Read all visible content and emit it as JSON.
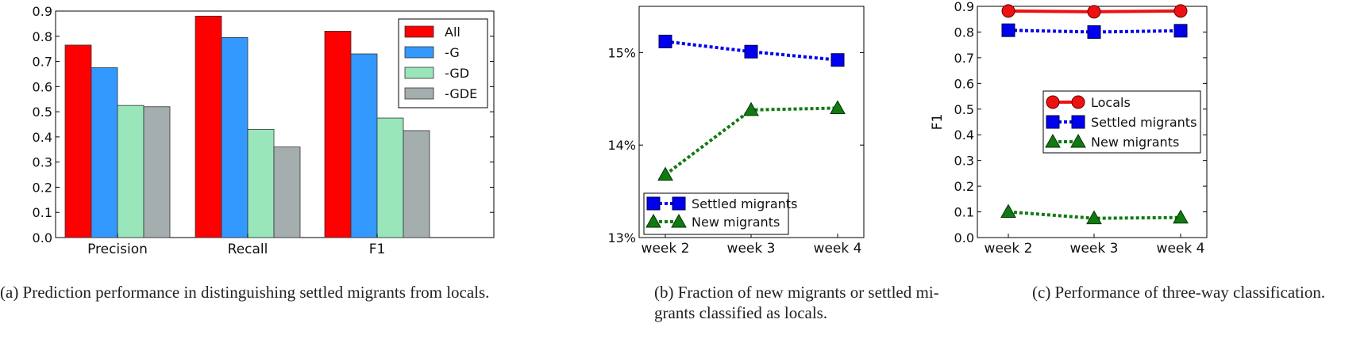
{
  "chart_data": [
    {
      "id": "a",
      "type": "bar",
      "categories": [
        "Precision",
        "Recall",
        "F1"
      ],
      "series": [
        {
          "name": "All",
          "color": "#ff0000",
          "values": [
            0.765,
            0.88,
            0.82
          ]
        },
        {
          "name": "-G",
          "color": "#3399ff",
          "values": [
            0.675,
            0.795,
            0.73
          ]
        },
        {
          "name": "-GD",
          "color": "#99e6bb",
          "values": [
            0.525,
            0.43,
            0.475
          ]
        },
        {
          "name": "-GDE",
          "color": "#a5aeae",
          "values": [
            0.52,
            0.36,
            0.425
          ]
        }
      ],
      "ylim": [
        0,
        0.9
      ],
      "yticks": [
        "0.0",
        "0.1",
        "0.2",
        "0.3",
        "0.4",
        "0.5",
        "0.6",
        "0.7",
        "0.8",
        "0.9"
      ],
      "legend": "top-right",
      "caption": "(a)  Prediction performance in distinguishing settled migrants from locals."
    },
    {
      "id": "b",
      "type": "line",
      "x": [
        "week 2",
        "week 3",
        "week 4"
      ],
      "series": [
        {
          "name": "Settled migrants",
          "color": "#0000ee",
          "marker": "square",
          "style": "dotted",
          "values": [
            15.12,
            15.01,
            14.92
          ]
        },
        {
          "name": "New migrants",
          "color": "#117a11",
          "marker": "triangle",
          "style": "dotted",
          "values": [
            13.68,
            14.38,
            14.4
          ]
        }
      ],
      "ylim": [
        13.0,
        15.5
      ],
      "yticks": [
        "13%",
        "14%",
        "15%"
      ],
      "legend": "bottom-left",
      "caption": "(b)  Fraction of new migrants or settled mi-grants classified as locals.",
      "caption_lines": [
        "(b)  Fraction of new migrants or settled mi-",
        "grants classified as locals."
      ]
    },
    {
      "id": "c",
      "type": "line",
      "x": [
        "week 2",
        "week 3",
        "week 4"
      ],
      "series": [
        {
          "name": "Locals",
          "color": "#ee1111",
          "marker": "circle",
          "style": "solid",
          "values": [
            0.882,
            0.879,
            0.882
          ]
        },
        {
          "name": "Settled migrants",
          "color": "#0000ee",
          "marker": "square",
          "style": "dotted",
          "values": [
            0.807,
            0.8,
            0.805
          ]
        },
        {
          "name": "New migrants",
          "color": "#117a11",
          "marker": "triangle",
          "style": "dotted",
          "values": [
            0.1,
            0.075,
            0.078
          ]
        }
      ],
      "ylim": [
        0,
        0.9
      ],
      "yticks": [
        "0.0",
        "0.1",
        "0.2",
        "0.3",
        "0.4",
        "0.5",
        "0.6",
        "0.7",
        "0.8",
        "0.9"
      ],
      "ylabel": "F1",
      "legend": "center-right",
      "caption": "(c)  Performance of three-way classification."
    }
  ]
}
